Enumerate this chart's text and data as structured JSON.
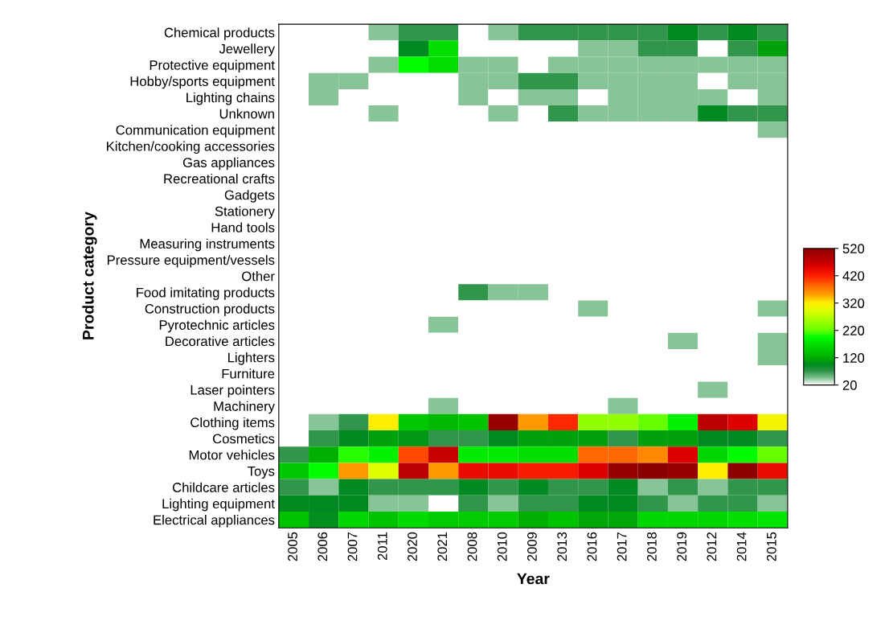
{
  "chart_data": {
    "type": "heatmap",
    "xlabel": "Year",
    "ylabel": "Product category",
    "categories": [
      "2005",
      "2006",
      "2007",
      "2011",
      "2020",
      "2021",
      "2008",
      "2010",
      "2009",
      "2013",
      "2016",
      "2017",
      "2018",
      "2019",
      "2012",
      "2014",
      "2015"
    ],
    "y_categories": [
      "Chemical products",
      "Jewellery",
      "Protective equipment",
      "Hobby/sports equipment",
      "Lighting chains",
      "Unknown",
      "Communication equipment",
      "Kitchen/cooking accessories",
      "Gas appliances",
      "Recreational crafts",
      "Gadgets",
      "Stationery",
      "Hand tools",
      "Measuring instruments",
      "Pressure equipment/vessels",
      "Other",
      "Food imitating products",
      "Construction products",
      "Pyrotechnic articles",
      "Decorative articles",
      "Lighters",
      "Furniture",
      "Laser pointers",
      "Machinery",
      "Clothing items",
      "Cosmetics",
      "Motor vehicles",
      "Toys",
      "Childcare articles",
      "Lighting equipment",
      "Electrical appliances"
    ],
    "cells": [
      [
        20,
        20,
        20,
        45,
        70,
        70,
        20,
        45,
        70,
        70,
        70,
        70,
        70,
        95,
        70,
        95,
        70
      ],
      [
        20,
        20,
        20,
        20,
        95,
        170,
        20,
        20,
        20,
        20,
        45,
        45,
        70,
        70,
        20,
        70,
        110
      ],
      [
        20,
        20,
        20,
        45,
        195,
        170,
        45,
        45,
        20,
        45,
        45,
        45,
        45,
        45,
        45,
        45,
        45
      ],
      [
        20,
        45,
        45,
        20,
        20,
        20,
        45,
        45,
        70,
        70,
        45,
        45,
        45,
        45,
        20,
        45,
        45
      ],
      [
        20,
        45,
        20,
        20,
        20,
        20,
        45,
        20,
        45,
        45,
        20,
        45,
        45,
        45,
        45,
        20,
        45
      ],
      [
        20,
        20,
        20,
        45,
        20,
        20,
        20,
        45,
        20,
        70,
        45,
        45,
        45,
        45,
        95,
        70,
        70
      ],
      [
        20,
        20,
        20,
        20,
        20,
        20,
        20,
        20,
        20,
        20,
        20,
        20,
        20,
        20,
        20,
        20,
        45
      ],
      [
        20,
        20,
        20,
        20,
        20,
        20,
        20,
        20,
        20,
        20,
        20,
        20,
        20,
        20,
        20,
        20,
        20
      ],
      [
        20,
        20,
        20,
        20,
        20,
        20,
        20,
        20,
        20,
        20,
        20,
        20,
        20,
        20,
        20,
        20,
        20
      ],
      [
        20,
        20,
        20,
        20,
        20,
        20,
        20,
        20,
        20,
        20,
        20,
        20,
        20,
        20,
        20,
        20,
        20
      ],
      [
        20,
        20,
        20,
        20,
        20,
        20,
        20,
        20,
        20,
        20,
        20,
        20,
        20,
        20,
        20,
        20,
        20
      ],
      [
        20,
        20,
        20,
        20,
        20,
        20,
        20,
        20,
        20,
        20,
        20,
        20,
        20,
        20,
        20,
        20,
        20
      ],
      [
        20,
        20,
        20,
        20,
        20,
        20,
        20,
        20,
        20,
        20,
        20,
        20,
        20,
        20,
        20,
        20,
        20
      ],
      [
        20,
        20,
        20,
        20,
        20,
        20,
        20,
        20,
        20,
        20,
        20,
        20,
        20,
        20,
        20,
        20,
        20
      ],
      [
        20,
        20,
        20,
        20,
        20,
        20,
        20,
        20,
        20,
        20,
        20,
        20,
        20,
        20,
        20,
        20,
        20
      ],
      [
        20,
        20,
        20,
        20,
        20,
        20,
        20,
        20,
        20,
        20,
        20,
        20,
        20,
        20,
        20,
        20,
        20
      ],
      [
        20,
        20,
        20,
        20,
        20,
        20,
        70,
        45,
        45,
        20,
        20,
        20,
        20,
        20,
        20,
        20,
        20
      ],
      [
        20,
        20,
        20,
        20,
        20,
        20,
        20,
        20,
        20,
        20,
        45,
        20,
        20,
        20,
        20,
        20,
        45
      ],
      [
        20,
        20,
        20,
        20,
        20,
        45,
        20,
        20,
        20,
        20,
        20,
        20,
        20,
        20,
        20,
        20,
        20
      ],
      [
        20,
        20,
        20,
        20,
        20,
        20,
        20,
        20,
        20,
        20,
        20,
        20,
        20,
        45,
        20,
        20,
        45
      ],
      [
        20,
        20,
        20,
        20,
        20,
        20,
        20,
        20,
        20,
        20,
        20,
        20,
        20,
        20,
        20,
        20,
        45
      ],
      [
        20,
        20,
        20,
        20,
        20,
        20,
        20,
        20,
        20,
        20,
        20,
        20,
        20,
        20,
        20,
        20,
        20
      ],
      [
        20,
        20,
        20,
        20,
        20,
        20,
        20,
        20,
        20,
        20,
        20,
        20,
        20,
        20,
        45,
        20,
        20
      ],
      [
        20,
        20,
        20,
        20,
        20,
        45,
        20,
        20,
        20,
        20,
        20,
        45,
        20,
        20,
        20,
        20,
        20
      ],
      [
        20,
        45,
        70,
        320,
        145,
        130,
        140,
        510,
        355,
        415,
        245,
        245,
        220,
        185,
        480,
        455,
        310
      ],
      [
        20,
        70,
        95,
        110,
        105,
        70,
        70,
        95,
        110,
        110,
        110,
        70,
        110,
        110,
        95,
        95,
        70
      ],
      [
        70,
        120,
        205,
        185,
        400,
        470,
        180,
        180,
        170,
        170,
        385,
        385,
        365,
        455,
        160,
        190,
        220
      ],
      [
        145,
        195,
        355,
        290,
        480,
        355,
        440,
        440,
        425,
        425,
        455,
        510,
        520,
        510,
        320,
        515,
        440
      ],
      [
        70,
        45,
        95,
        70,
        70,
        70,
        95,
        70,
        95,
        70,
        70,
        95,
        45,
        70,
        45,
        70,
        70
      ],
      [
        95,
        95,
        95,
        45,
        45,
        20,
        70,
        45,
        70,
        70,
        95,
        95,
        70,
        45,
        70,
        70,
        45
      ],
      [
        140,
        100,
        160,
        140,
        165,
        150,
        150,
        150,
        120,
        140,
        115,
        115,
        160,
        160,
        160,
        170,
        175
      ]
    ],
    "clim": [
      20,
      520
    ],
    "cticks": [
      520,
      420,
      320,
      220,
      120,
      20
    ],
    "grid": false
  }
}
